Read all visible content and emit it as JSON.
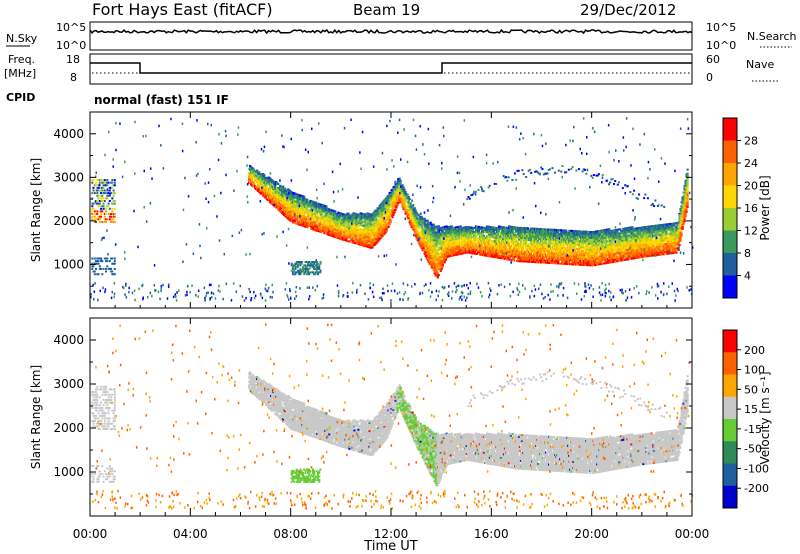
{
  "header": {
    "station": "Fort Hays East (fitACF)",
    "beam": "Beam 19",
    "date": "29/Dec/2012"
  },
  "noise_panel": {
    "left_label": "N.Sky",
    "right_label": "N.Search",
    "ticks": [
      "10^5",
      "10^0"
    ]
  },
  "freq_panel": {
    "left_label_1": "Freq.",
    "left_label_2": "[MHz]",
    "left_ticks": [
      "18",
      "8"
    ],
    "right_label": "Nave",
    "right_ticks": [
      "60",
      "0"
    ],
    "cpid_label": "CPID",
    "cpid_text": "normal (fast) 151 IF"
  },
  "chart_data": [
    {
      "type": "heatmap",
      "title": "",
      "ylabel": "Slant Range [km]",
      "yticks": [
        "4000",
        "3000",
        "2000",
        "1000"
      ],
      "colorbar_label": "Power [dB]",
      "colorbar_ticks": [
        "28",
        "24",
        "20",
        "16",
        "12",
        "8",
        "4"
      ],
      "colors": [
        "#0000ff",
        "#1f5f9e",
        "#3a9a5e",
        "#9acd32",
        "#ffd700",
        "#ffa500",
        "#ff6000",
        "#ff0000"
      ]
    },
    {
      "type": "heatmap",
      "title": "",
      "ylabel": "Slant Range [km]",
      "yticks": [
        "4000",
        "3000",
        "2000",
        "1000"
      ],
      "colorbar_label": "Velocity [m s⁻¹]",
      "colorbar_ticks": [
        "200",
        "100",
        "50",
        "15",
        "-15",
        "-50",
        "-100",
        "-200"
      ],
      "colors": [
        "#0000cd",
        "#1e5fa0",
        "#2e8b57",
        "#66cc33",
        "#c8c8c8",
        "#ffa500",
        "#ff6000",
        "#ff0000"
      ]
    }
  ],
  "x_axis": {
    "ticks": [
      "00:00",
      "04:00",
      "08:00",
      "12:00",
      "16:00",
      "20:00",
      "00:00"
    ],
    "label": "Time UT"
  }
}
